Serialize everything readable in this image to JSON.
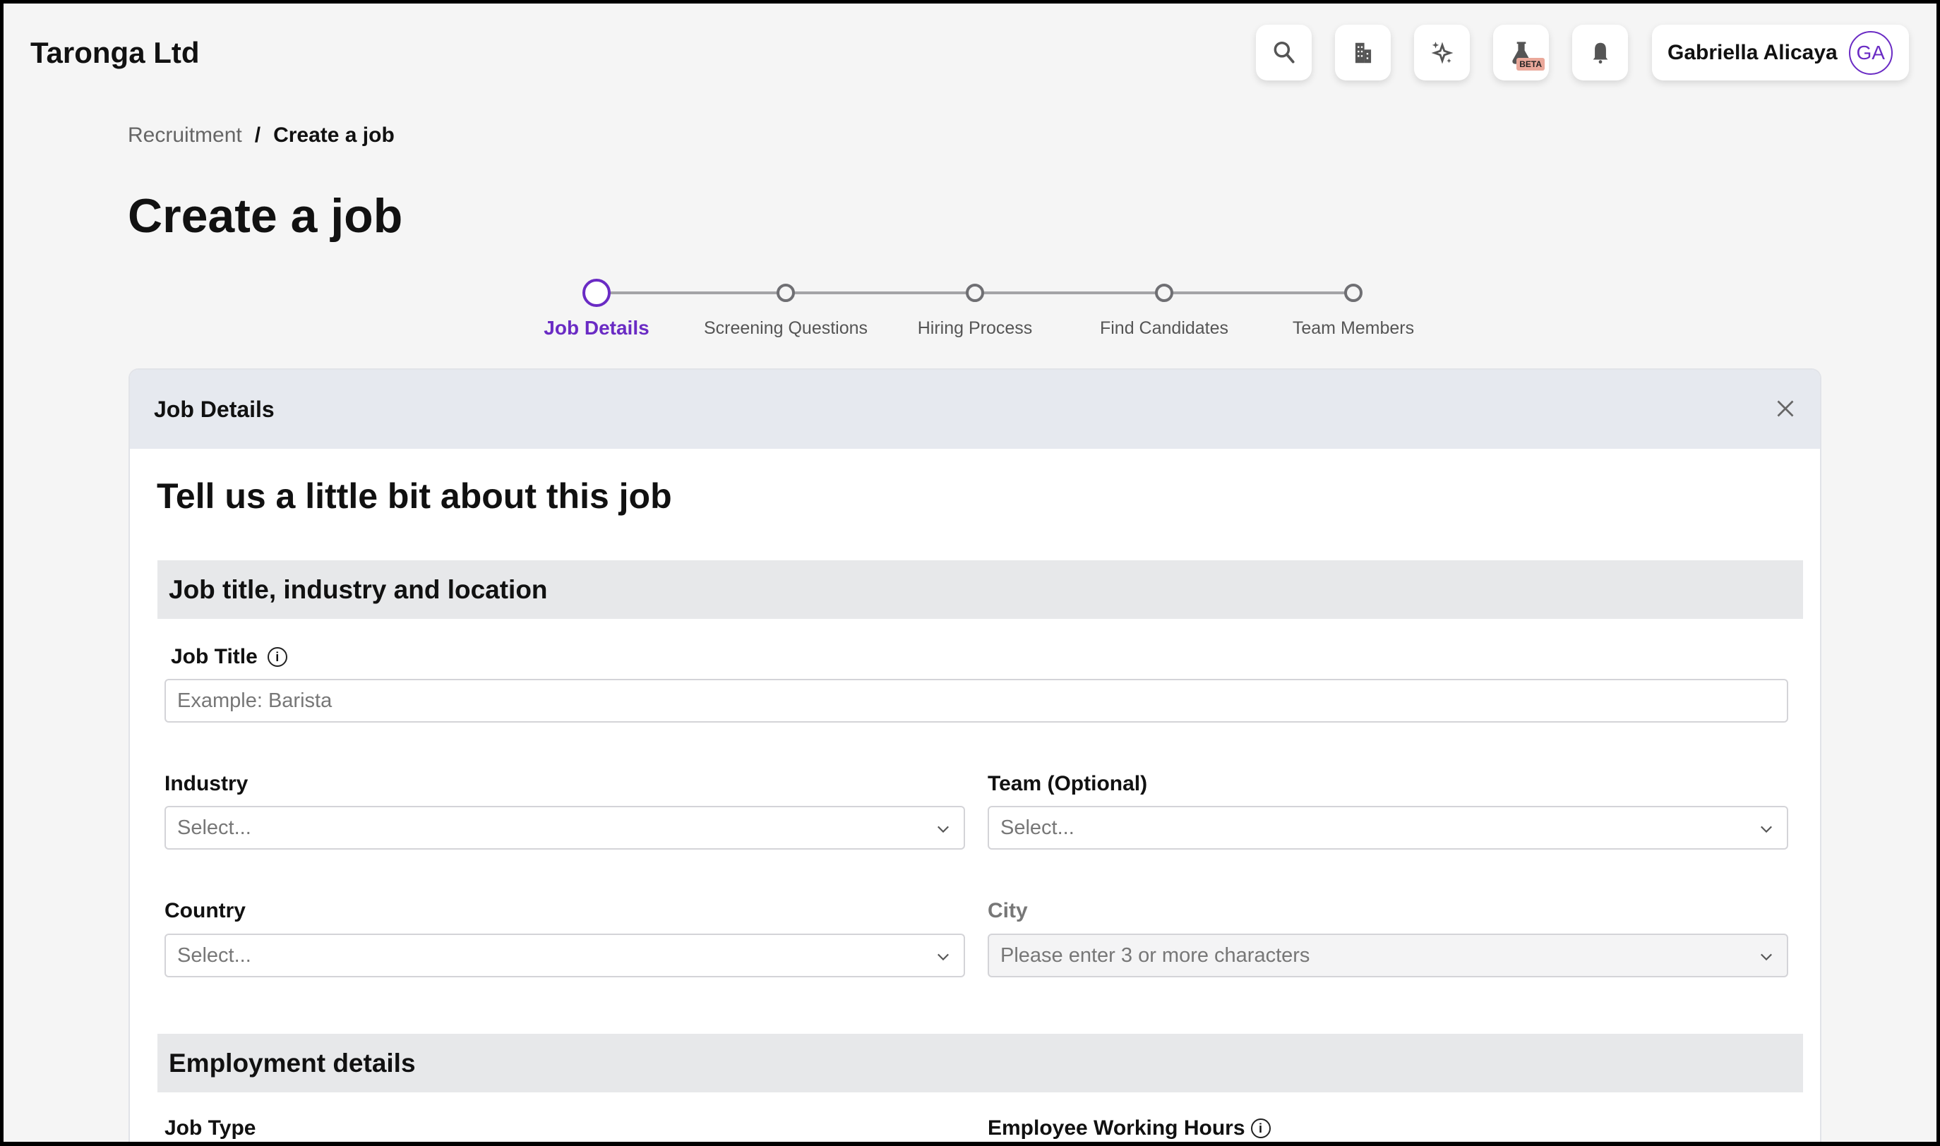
{
  "header": {
    "company": "Taronga Ltd",
    "beta_badge": "BETA",
    "user_name": "Gabriella Alicaya",
    "user_initials": "GA",
    "icons": [
      "search-icon",
      "building-icon",
      "sparkle-icon",
      "flask-icon",
      "bell-icon"
    ]
  },
  "breadcrumb": {
    "parent": "Recruitment",
    "separator": "/",
    "current": "Create a job"
  },
  "page_title": "Create a job",
  "stepper": {
    "steps": [
      "Job Details",
      "Screening Questions",
      "Hiring Process",
      "Find Candidates",
      "Team Members"
    ],
    "active_index": 0,
    "accent": "#6a2bc4"
  },
  "card": {
    "title": "Job Details",
    "lead": "Tell us a little bit about this job",
    "section1": "Job title, industry and location",
    "job_title_label": "Job Title",
    "job_title_placeholder": "Example: Barista",
    "industry_label": "Industry",
    "industry_placeholder": "Select...",
    "team_label": "Team (Optional)",
    "team_placeholder": "Select...",
    "country_label": "Country",
    "country_placeholder": "Select...",
    "city_label": "City",
    "city_placeholder": "Please enter 3 or more characters",
    "section2": "Employment details",
    "job_type_label": "Job Type",
    "hours_label": "Employee Working Hours"
  }
}
